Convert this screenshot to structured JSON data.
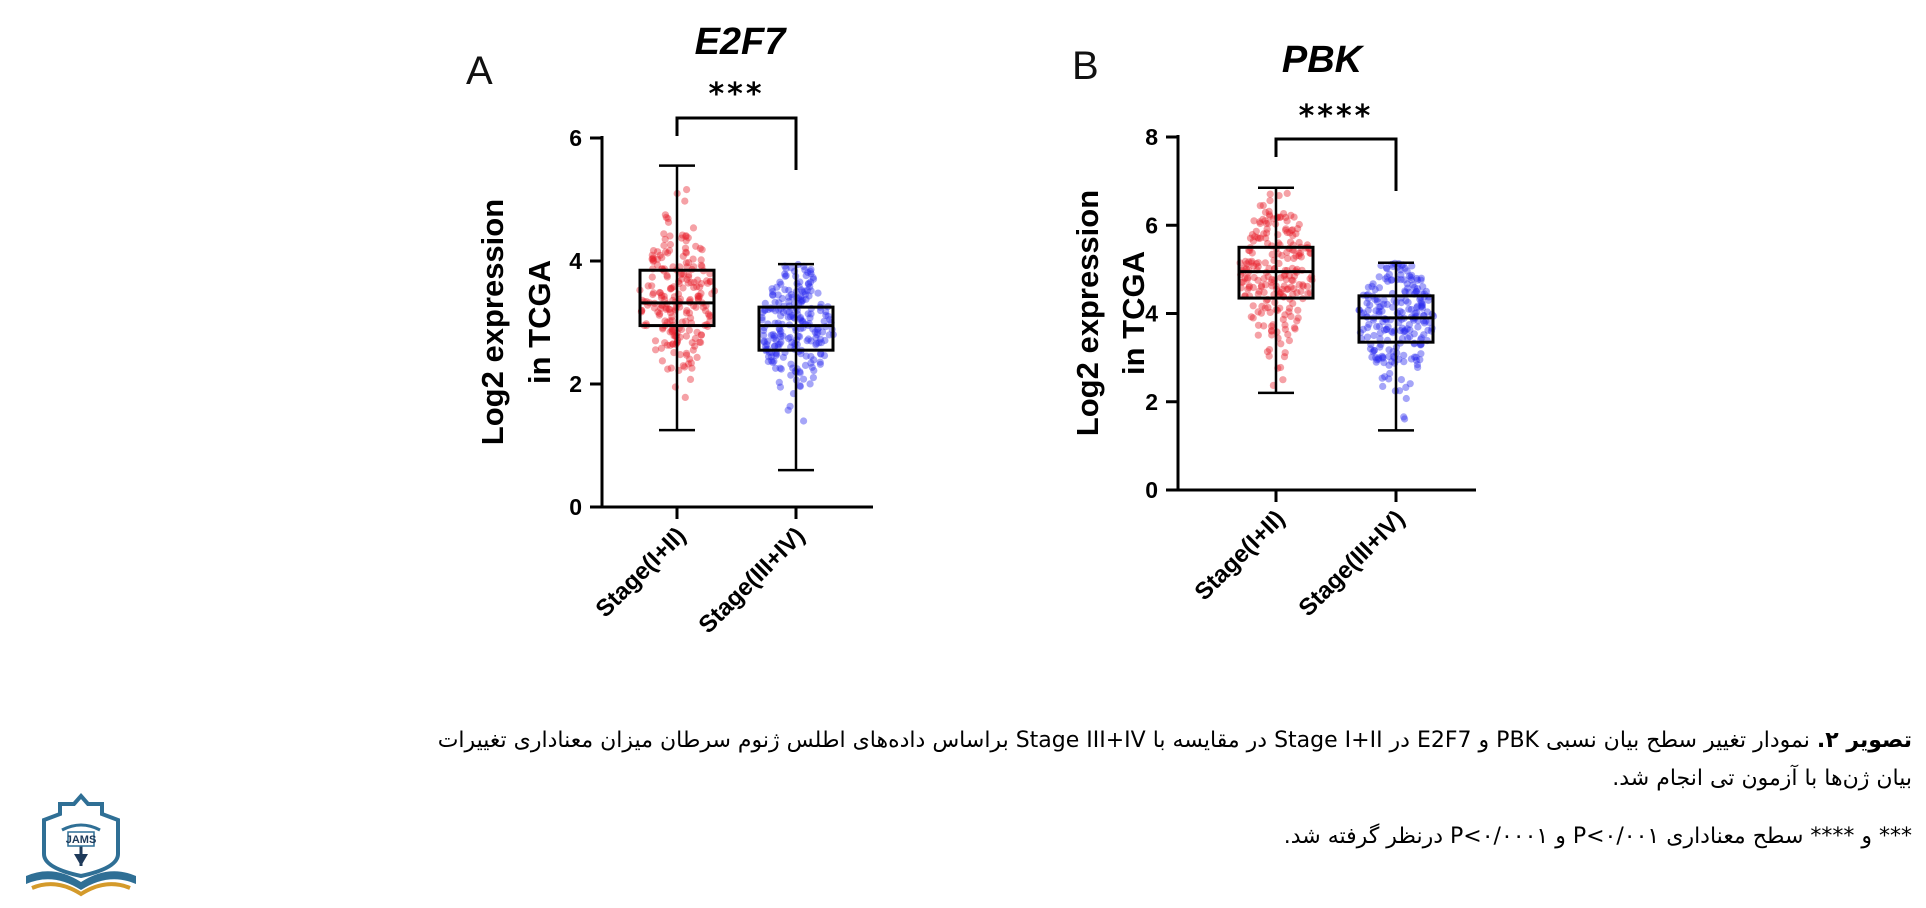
{
  "chart_data": [
    {
      "type": "box",
      "panel_label": "A",
      "title": "E2F7",
      "ylabel_lines": [
        "Log2 expression",
        "in TCGA"
      ],
      "ylim": [
        0,
        6
      ],
      "yticks": [
        0,
        2,
        4,
        6
      ],
      "categories": [
        "Stage(I+II)",
        "Stage(III+IV)"
      ],
      "significance": "***",
      "series": [
        {
          "category": "Stage(I+II)",
          "color": "#e8202a",
          "min": 1.25,
          "q1": 2.95,
          "median": 3.32,
          "q3": 3.85,
          "max": 5.55
        },
        {
          "category": "Stage(III+IV)",
          "color": "#2828ee",
          "min": 0.6,
          "q1": 2.55,
          "median": 2.95,
          "q3": 3.25,
          "max": 3.95
        }
      ]
    },
    {
      "type": "box",
      "panel_label": "B",
      "title": "PBK",
      "ylabel_lines": [
        "Log2 expression",
        "in TCGA"
      ],
      "ylim": [
        0,
        8
      ],
      "yticks": [
        0,
        2,
        4,
        6,
        8
      ],
      "categories": [
        "Stage(I+II)",
        "Stage(III+IV)"
      ],
      "significance": "****",
      "series": [
        {
          "category": "Stage(I+II)",
          "color": "#e8202a",
          "min": 2.2,
          "q1": 4.35,
          "median": 4.95,
          "q3": 5.5,
          "max": 6.85
        },
        {
          "category": "Stage(III+IV)",
          "color": "#2828ee",
          "min": 1.35,
          "q1": 3.35,
          "median": 3.9,
          "q3": 4.4,
          "max": 5.15
        }
      ]
    }
  ],
  "caption": {
    "label": "تصویر ۲.",
    "line1": "نمودار تغییر سطح بیان نسبی PBK و E2F7 در Stage I+II در مقایسه با Stage III+IV براساس داده‌های اطلس ژنوم سرطان میزان معناداری تغییرات",
    "line2": "بیان ژن‌ها با آزمون تی انجام شد.",
    "note": "*** و **** سطح معناداری P<۰/۰۰۱ و P<۰/۰۰۰۱ درنظر گرفته شد."
  },
  "logo": {
    "text": "JAMS",
    "colors": {
      "blue": "#2f6f95",
      "gold": "#d49a2a",
      "dark": "#1e3a5a"
    }
  }
}
